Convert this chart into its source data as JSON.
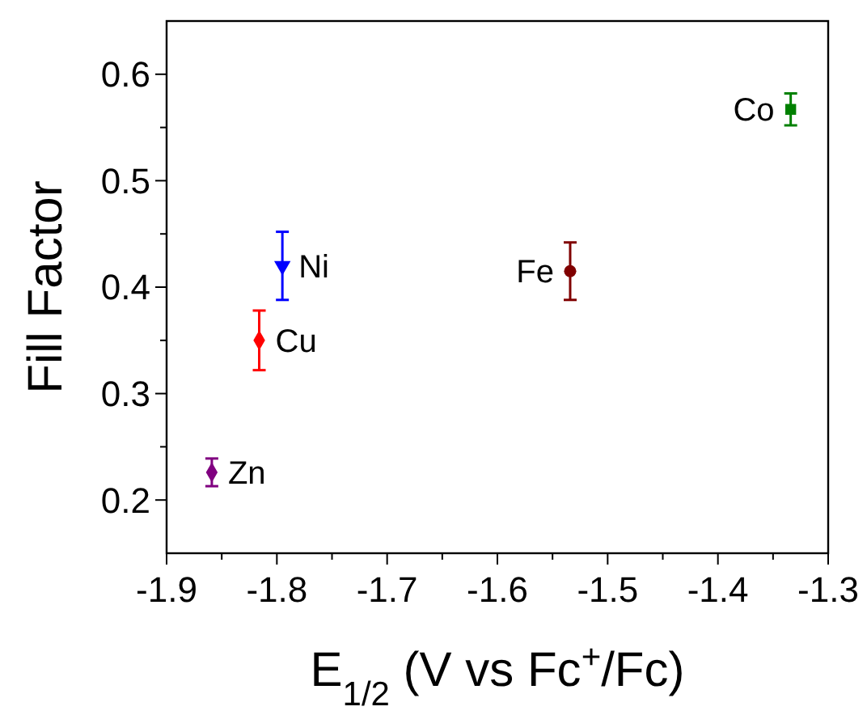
{
  "chart_data": {
    "type": "scatter",
    "xlabel": "E$_{1/2}$ (V vs Fc$^{+}$/Fc)",
    "ylabel": "Fill Factor",
    "xlim": [
      -1.9,
      -1.3
    ],
    "ylim": [
      0.15,
      0.65
    ],
    "xticks": [
      -1.9,
      {
        "value": -1.85,
        "label": null
      },
      -1.8,
      {
        "value": -1.75,
        "label": null
      },
      -1.7,
      {
        "value": -1.65,
        "label": null
      },
      -1.6,
      {
        "value": -1.55,
        "label": null
      },
      -1.5,
      {
        "value": -1.45,
        "label": null
      },
      -1.4,
      {
        "value": -1.35,
        "label": null
      },
      -1.3
    ],
    "yticks": [
      0.2,
      {
        "value": 0.25,
        "label": null
      },
      0.3,
      {
        "value": 0.35,
        "label": null
      },
      0.4,
      {
        "value": 0.45,
        "label": null
      },
      0.5,
      {
        "value": 0.55,
        "label": null
      },
      0.6
    ],
    "grid": false,
    "legend": false,
    "series": [
      {
        "name": "Zn",
        "color": "#800080",
        "marker": "diamond",
        "x": [
          -1.859
        ],
        "values": [
          0.226
        ],
        "errors": [
          0.013
        ]
      },
      {
        "name": "Cu",
        "color": "#ff0000",
        "marker": "diamond",
        "x": [
          -1.816
        ],
        "values": [
          0.35
        ],
        "errors": [
          0.028
        ]
      },
      {
        "name": "Ni",
        "color": "#0000ff",
        "marker": "triangle",
        "x": [
          -1.795
        ],
        "values": [
          0.42
        ],
        "errors": [
          0.032
        ]
      },
      {
        "name": "Fe",
        "color": "#800000",
        "marker": "circle",
        "x": [
          -1.534
        ],
        "values": [
          0.415
        ],
        "errors": [
          0.027
        ]
      },
      {
        "name": "Co",
        "color": "#008000",
        "marker": "square",
        "x": [
          -1.334
        ],
        "values": [
          0.567
        ],
        "errors": [
          0.015
        ]
      }
    ]
  }
}
